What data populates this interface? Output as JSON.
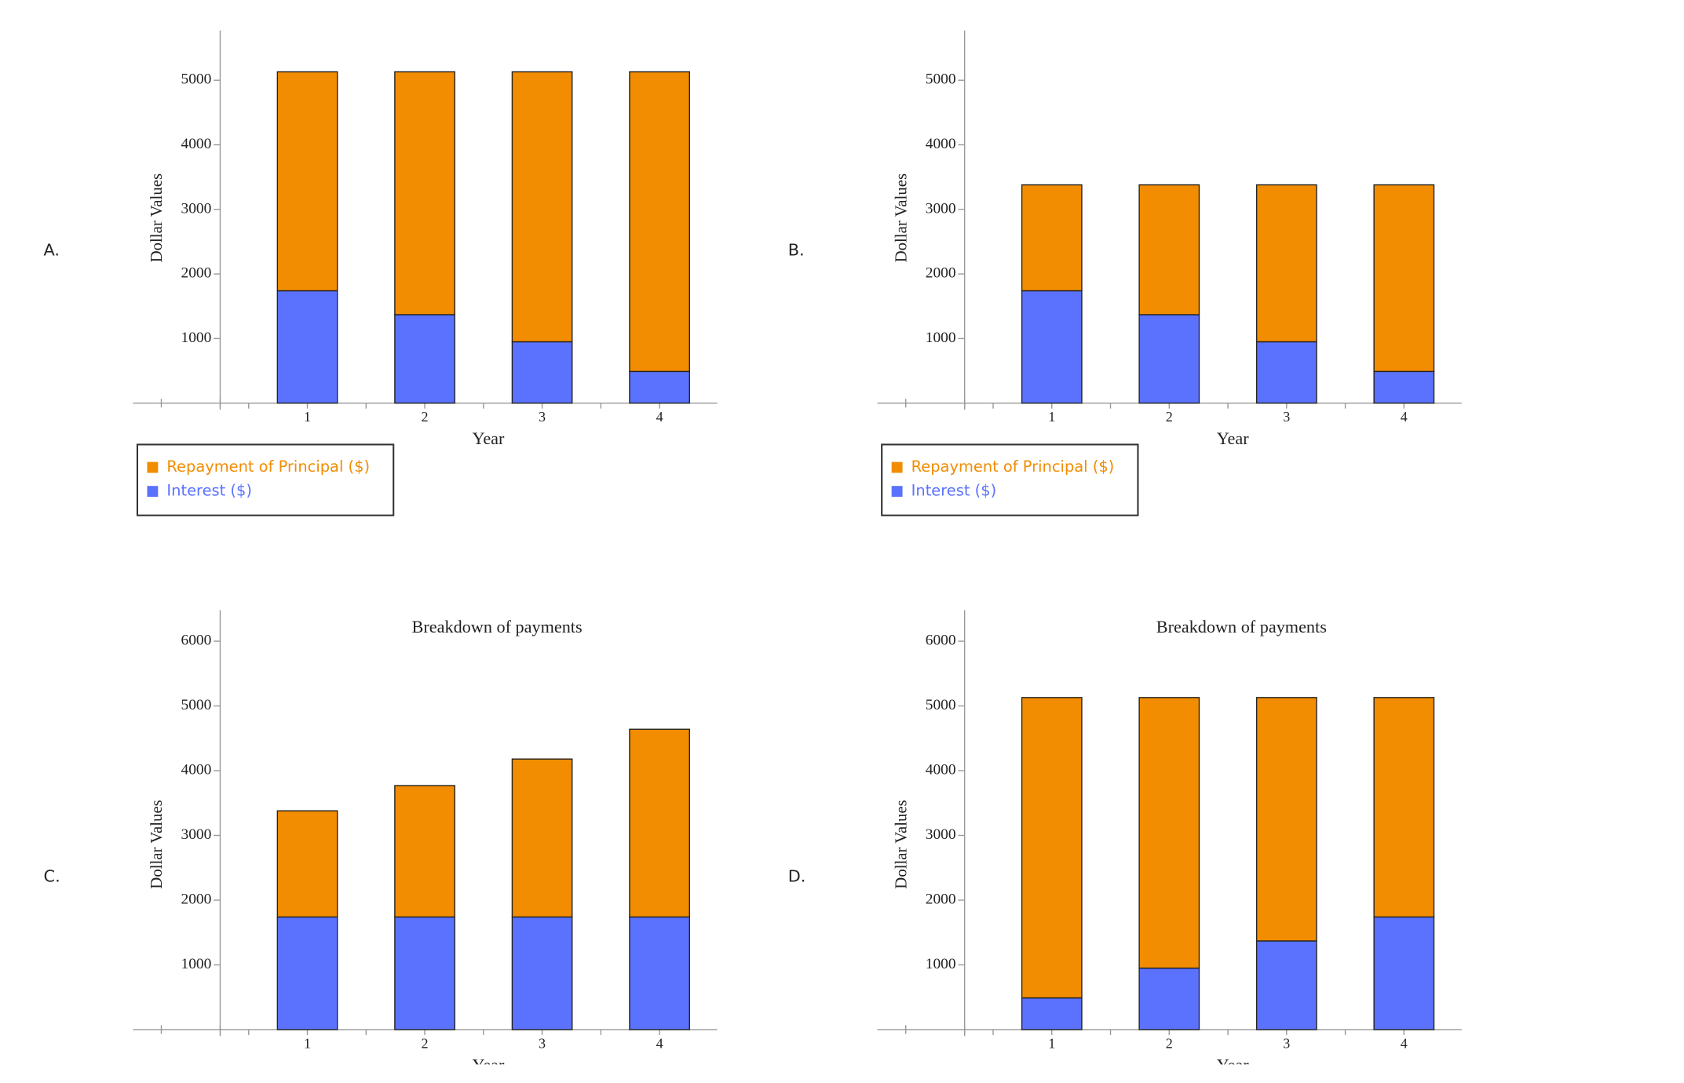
{
  "options": [
    "A.",
    "B.",
    "C.",
    "D."
  ],
  "chart_data": [
    {
      "type": "bar",
      "stacked": true,
      "x_label": "Year",
      "y_label": "Dollar Values",
      "categories": [
        "1",
        "2",
        "3",
        "4"
      ],
      "series": [
        {
          "name": "Repayment of Principal ($)",
          "color": "#f28c00",
          "values": [
            3390,
            3760,
            4180,
            4640
          ]
        },
        {
          "name": "Interest ($)",
          "color": "#5b72ff",
          "values": [
            1740,
            1370,
            950,
            490
          ]
        }
      ],
      "ylim": [
        0,
        5770
      ],
      "yticks": [
        1000,
        2000,
        3000,
        4000,
        5000
      ],
      "legend": "bottom-left"
    },
    {
      "type": "bar",
      "stacked": true,
      "x_label": "Year",
      "y_label": "Dollar Values",
      "categories": [
        "1",
        "2",
        "3",
        "4"
      ],
      "series": [
        {
          "name": "Repayment of Principal ($)",
          "color": "#f28c00",
          "values": [
            1640,
            2010,
            2430,
            2890
          ]
        },
        {
          "name": "Interest ($)",
          "color": "#5b72ff",
          "values": [
            1740,
            1370,
            950,
            490
          ]
        }
      ],
      "ylim": [
        0,
        5770
      ],
      "yticks": [
        1000,
        2000,
        3000,
        4000,
        5000
      ],
      "legend": "bottom-left"
    },
    {
      "type": "bar",
      "stacked": true,
      "title": "Breakdown of payments",
      "x_label": "Year",
      "y_label": "Dollar Values",
      "categories": [
        "1",
        "2",
        "3",
        "4"
      ],
      "series": [
        {
          "color": "#f28c00",
          "values": [
            1640,
            2030,
            2440,
            2900
          ]
        },
        {
          "color": "#5b72ff",
          "values": [
            1740,
            1740,
            1740,
            1740
          ]
        }
      ],
      "ylim": [
        0,
        6480
      ],
      "yticks": [
        1000,
        2000,
        3000,
        4000,
        5000,
        6000
      ]
    },
    {
      "type": "bar",
      "stacked": true,
      "title": "Breakdown of payments",
      "x_label": "Year",
      "y_label": "Dollar Values",
      "categories": [
        "1",
        "2",
        "3",
        "4"
      ],
      "series": [
        {
          "color": "#f28c00",
          "values": [
            4640,
            4180,
            3760,
            3390
          ]
        },
        {
          "color": "#5b72ff",
          "values": [
            490,
            950,
            1370,
            1740
          ]
        }
      ],
      "ylim": [
        0,
        6480
      ],
      "yticks": [
        1000,
        2000,
        3000,
        4000,
        5000,
        6000
      ]
    }
  ]
}
